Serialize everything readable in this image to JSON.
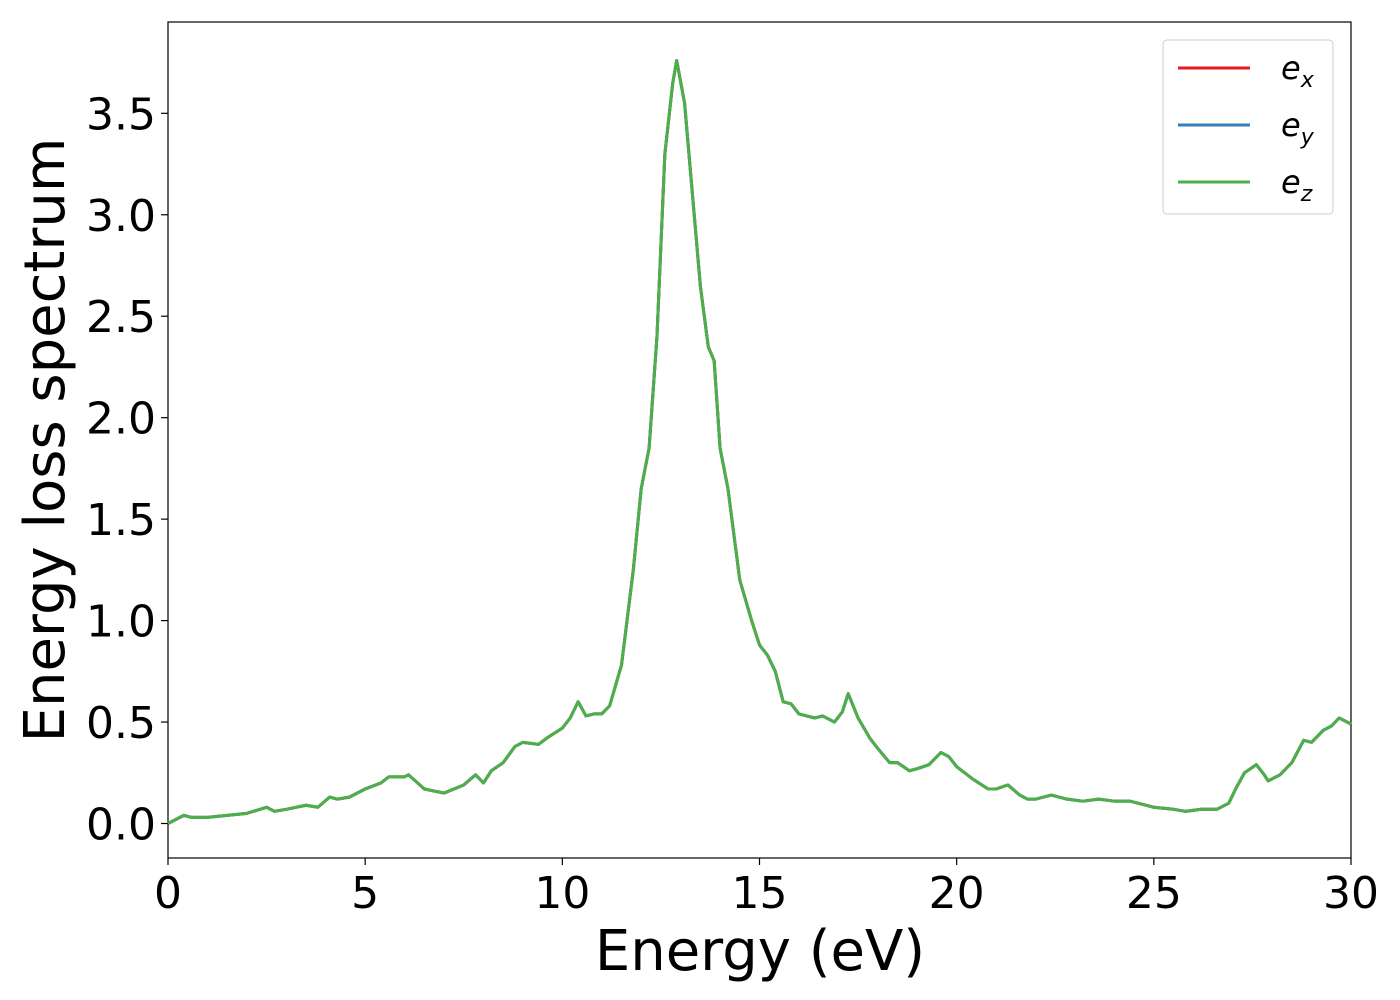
{
  "chart_data": {
    "type": "line",
    "x_label": "Energy (eV)",
    "y_label": "Energy loss spectrum",
    "xlim": [
      0,
      30
    ],
    "xticks": [
      0,
      5,
      10,
      15,
      20,
      25,
      30
    ],
    "ylim": [
      -0.17,
      3.95
    ],
    "yticks": [
      {
        "value": 0,
        "label": "0.0"
      },
      0.5,
      {
        "value": 1,
        "label": "1.0"
      },
      1.5,
      {
        "value": 2,
        "label": "2.0"
      },
      2.5,
      {
        "value": 3,
        "label": "3.0"
      },
      3.5
    ],
    "grid": false,
    "legend": "upper right",
    "x": [
      0,
      0.4,
      0.6,
      1.0,
      1.5,
      2.0,
      2.5,
      2.7,
      3.0,
      3.5,
      3.8,
      4.1,
      4.3,
      4.6,
      5.0,
      5.4,
      5.6,
      6.0,
      6.1,
      6.5,
      7.0,
      7.5,
      7.8,
      8.0,
      8.2,
      8.5,
      8.8,
      9.0,
      9.4,
      9.6,
      10.0,
      10.2,
      10.4,
      10.6,
      10.8,
      11.0,
      11.2,
      11.5,
      11.8,
      12.0,
      12.2,
      12.4,
      12.6,
      12.8,
      12.9,
      13.1,
      13.3,
      13.5,
      13.7,
      13.85,
      14.0,
      14.2,
      14.5,
      14.8,
      15.0,
      15.2,
      15.4,
      15.6,
      15.8,
      16.0,
      16.4,
      16.6,
      16.9,
      17.1,
      17.25,
      17.5,
      17.8,
      18.0,
      18.3,
      18.5,
      18.8,
      19.0,
      19.3,
      19.6,
      19.8,
      20.0,
      20.4,
      20.8,
      21.0,
      21.3,
      21.6,
      21.8,
      22.0,
      22.4,
      22.8,
      23.2,
      23.6,
      24.0,
      24.4,
      25.0,
      25.5,
      25.8,
      26.2,
      26.6,
      26.9,
      27.1,
      27.3,
      27.6,
      27.8,
      27.9,
      28.2,
      28.5,
      28.8,
      29.0,
      29.3,
      29.5,
      29.7,
      30.0
    ],
    "series": [
      {
        "name": "e_x",
        "color": "#e41a1c",
        "values": [
          0.0,
          0.04,
          0.03,
          0.03,
          0.04,
          0.05,
          0.08,
          0.06,
          0.07,
          0.09,
          0.08,
          0.13,
          0.12,
          0.13,
          0.17,
          0.2,
          0.23,
          0.23,
          0.24,
          0.17,
          0.15,
          0.19,
          0.24,
          0.2,
          0.26,
          0.3,
          0.38,
          0.4,
          0.39,
          0.42,
          0.47,
          0.52,
          0.6,
          0.53,
          0.54,
          0.54,
          0.58,
          0.78,
          1.25,
          1.65,
          1.85,
          2.4,
          3.3,
          3.65,
          3.76,
          3.55,
          3.1,
          2.65,
          2.35,
          2.28,
          1.85,
          1.65,
          1.2,
          1.0,
          0.88,
          0.83,
          0.75,
          0.6,
          0.59,
          0.54,
          0.52,
          0.53,
          0.5,
          0.55,
          0.64,
          0.52,
          0.42,
          0.37,
          0.3,
          0.3,
          0.26,
          0.27,
          0.29,
          0.35,
          0.33,
          0.28,
          0.22,
          0.17,
          0.17,
          0.19,
          0.14,
          0.12,
          0.12,
          0.14,
          0.12,
          0.11,
          0.12,
          0.11,
          0.11,
          0.08,
          0.07,
          0.06,
          0.07,
          0.07,
          0.1,
          0.18,
          0.25,
          0.29,
          0.24,
          0.21,
          0.24,
          0.3,
          0.41,
          0.4,
          0.46,
          0.48,
          0.52,
          0.49
        ]
      },
      {
        "name": "e_y",
        "color": "#377eb8",
        "values": [
          0.0,
          0.04,
          0.03,
          0.03,
          0.04,
          0.05,
          0.08,
          0.06,
          0.07,
          0.09,
          0.08,
          0.13,
          0.12,
          0.13,
          0.17,
          0.2,
          0.23,
          0.23,
          0.24,
          0.17,
          0.15,
          0.19,
          0.24,
          0.2,
          0.26,
          0.3,
          0.38,
          0.4,
          0.39,
          0.42,
          0.47,
          0.52,
          0.6,
          0.53,
          0.54,
          0.54,
          0.58,
          0.78,
          1.25,
          1.65,
          1.85,
          2.4,
          3.3,
          3.65,
          3.76,
          3.55,
          3.1,
          2.65,
          2.35,
          2.28,
          1.85,
          1.65,
          1.2,
          1.0,
          0.88,
          0.83,
          0.75,
          0.6,
          0.59,
          0.54,
          0.52,
          0.53,
          0.5,
          0.55,
          0.64,
          0.52,
          0.42,
          0.37,
          0.3,
          0.3,
          0.26,
          0.27,
          0.29,
          0.35,
          0.33,
          0.28,
          0.22,
          0.17,
          0.17,
          0.19,
          0.14,
          0.12,
          0.12,
          0.14,
          0.12,
          0.11,
          0.12,
          0.11,
          0.11,
          0.08,
          0.07,
          0.06,
          0.07,
          0.07,
          0.1,
          0.18,
          0.25,
          0.29,
          0.24,
          0.21,
          0.24,
          0.3,
          0.41,
          0.4,
          0.46,
          0.48,
          0.52,
          0.49
        ]
      },
      {
        "name": "e_z",
        "color": "#4daf4a",
        "values": [
          0.0,
          0.04,
          0.03,
          0.03,
          0.04,
          0.05,
          0.08,
          0.06,
          0.07,
          0.09,
          0.08,
          0.13,
          0.12,
          0.13,
          0.17,
          0.2,
          0.23,
          0.23,
          0.24,
          0.17,
          0.15,
          0.19,
          0.24,
          0.2,
          0.26,
          0.3,
          0.38,
          0.4,
          0.39,
          0.42,
          0.47,
          0.52,
          0.6,
          0.53,
          0.54,
          0.54,
          0.58,
          0.78,
          1.25,
          1.65,
          1.85,
          2.4,
          3.3,
          3.65,
          3.76,
          3.55,
          3.1,
          2.65,
          2.35,
          2.28,
          1.85,
          1.65,
          1.2,
          1.0,
          0.88,
          0.83,
          0.75,
          0.6,
          0.59,
          0.54,
          0.52,
          0.53,
          0.5,
          0.55,
          0.64,
          0.52,
          0.42,
          0.37,
          0.3,
          0.3,
          0.26,
          0.27,
          0.29,
          0.35,
          0.33,
          0.28,
          0.22,
          0.17,
          0.17,
          0.19,
          0.14,
          0.12,
          0.12,
          0.14,
          0.12,
          0.11,
          0.12,
          0.11,
          0.11,
          0.08,
          0.07,
          0.06,
          0.07,
          0.07,
          0.1,
          0.18,
          0.25,
          0.29,
          0.24,
          0.21,
          0.24,
          0.3,
          0.41,
          0.4,
          0.46,
          0.48,
          0.52,
          0.49
        ]
      }
    ]
  }
}
